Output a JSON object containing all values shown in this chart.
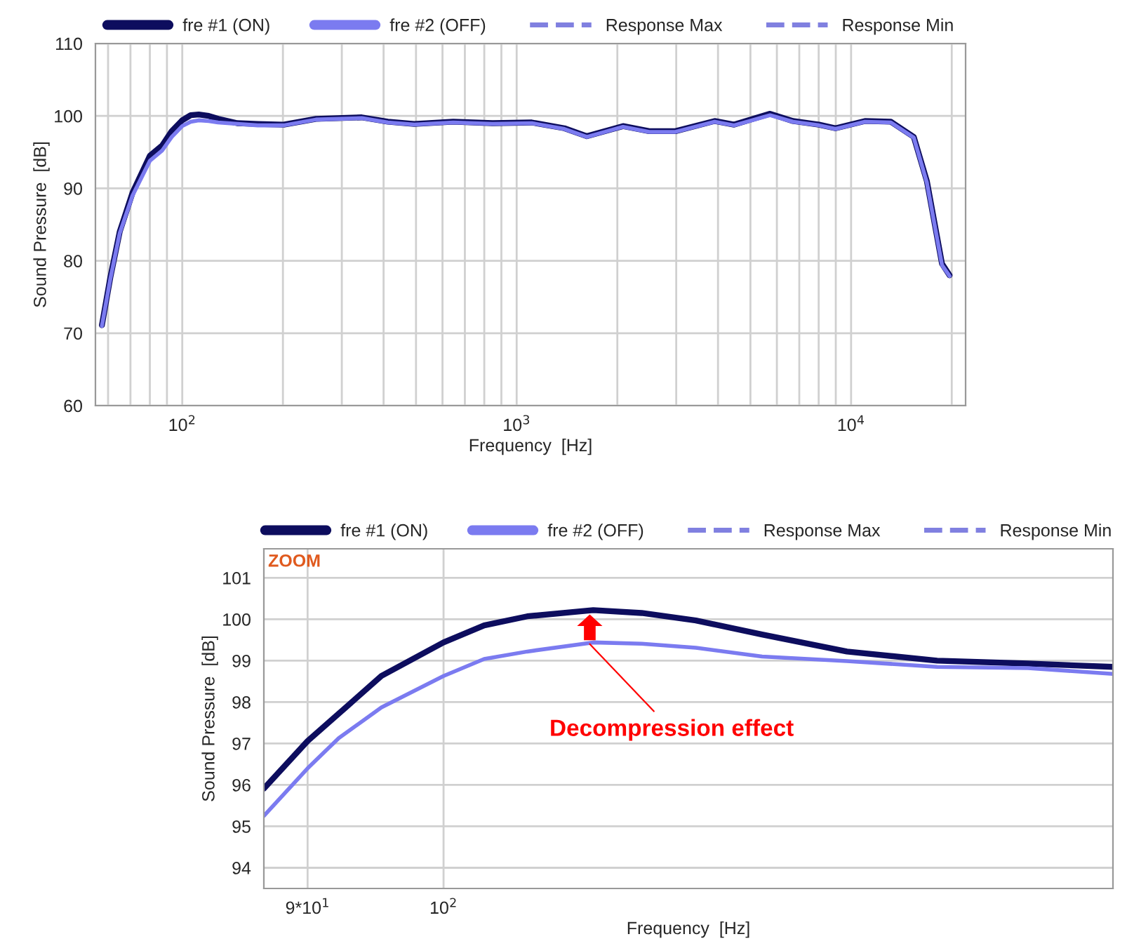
{
  "chart_data": [
    {
      "type": "line",
      "xlabel": "Frequency  [Hz]",
      "ylabel": "Sound Pressure  [dB]",
      "log": "x",
      "grid": true,
      "legend": "top",
      "line_style": "solid",
      "xlim": [
        55,
        22000
      ],
      "ylim": [
        60,
        110
      ],
      "xticks": [
        {
          "value": 60,
          "label": null
        },
        {
          "value": 70,
          "label": null
        },
        {
          "value": 80,
          "label": null
        },
        {
          "value": 90,
          "label": null
        },
        {
          "value": 100,
          "label": "10$^{2}$"
        },
        {
          "value": 200,
          "label": null
        },
        {
          "value": 300,
          "label": null
        },
        {
          "value": 400,
          "label": null
        },
        {
          "value": 500,
          "label": null
        },
        {
          "value": 600,
          "label": null
        },
        {
          "value": 700,
          "label": null
        },
        {
          "value": 800,
          "label": null
        },
        {
          "value": 900,
          "label": null
        },
        {
          "value": 1000,
          "label": "10$^{3}$"
        },
        {
          "value": 2000,
          "label": null
        },
        {
          "value": 3000,
          "label": null
        },
        {
          "value": 4000,
          "label": null
        },
        {
          "value": 5000,
          "label": null
        },
        {
          "value": 6000,
          "label": null
        },
        {
          "value": 7000,
          "label": null
        },
        {
          "value": 8000,
          "label": null
        },
        {
          "value": 9000,
          "label": null
        },
        {
          "value": 10000,
          "label": "10$^{4}$"
        },
        {
          "value": 20000,
          "label": null
        }
      ],
      "yticks": [
        60,
        70,
        80,
        90,
        100,
        110
      ],
      "series": [
        {
          "name": "fre #1 (ON)",
          "color": "#0d0d5e",
          "x": [
            57.5,
            61,
            65,
            71,
            80,
            87,
            93,
            100,
            106,
            112,
            120,
            128,
            146,
            168,
            201,
            251,
            344,
            412,
            494,
            646,
            847,
            1109,
            1389,
            1622,
            2080,
            2490,
            2985,
            3908,
            4470,
            5725,
            6700,
            8020,
            8980,
            11000,
            13150,
            15400,
            16850,
            18700,
            19700
          ],
          "values": [
            71.1,
            77.8,
            84,
            89.4,
            94.5,
            95.9,
            97.9,
            99.4,
            100.1,
            100.2,
            100.0,
            99.6,
            99.0,
            98.9,
            98.8,
            99.6,
            99.8,
            99.2,
            98.9,
            99.2,
            99.0,
            99.1,
            98.3,
            97.2,
            98.6,
            97.9,
            97.9,
            99.3,
            98.8,
            100.3,
            99.3,
            98.8,
            98.3,
            99.3,
            99.2,
            97.1,
            91.0,
            79.6,
            78.0
          ]
        },
        {
          "name": "fre #2 (OFF)",
          "color": "#7b7bf0",
          "x": [
            57.5,
            61,
            65,
            71,
            80,
            87,
            93,
            100,
            106,
            112,
            120,
            128,
            146,
            168,
            201,
            251,
            344,
            412,
            494,
            646,
            847,
            1109,
            1389,
            1622,
            2080,
            2490,
            2985,
            3908,
            4470,
            5725,
            6700,
            8020,
            8980,
            11000,
            13150,
            15400,
            16850,
            18700,
            19700
          ],
          "values": [
            71.0,
            77.6,
            83.8,
            89.0,
            93.8,
            95.2,
            97.1,
            98.6,
            99.2,
            99.4,
            99.3,
            99.1,
            98.9,
            98.7,
            98.7,
            99.5,
            99.7,
            99.1,
            98.8,
            99.1,
            98.9,
            99.0,
            98.2,
            97.1,
            98.5,
            97.8,
            97.8,
            99.2,
            98.7,
            100.1,
            99.2,
            98.7,
            98.2,
            99.2,
            99.1,
            97.0,
            90.8,
            79.4,
            77.9
          ]
        },
        {
          "name": "Response Max",
          "color": "#8080e0",
          "line_style": "dashed"
        },
        {
          "name": "Response Min",
          "color": "#8080e0",
          "line_style": "dashed"
        }
      ]
    },
    {
      "type": "line",
      "xlabel": "Frequency  [Hz]",
      "ylabel": "Sound Pressure  [dB]",
      "log": "x",
      "grid": true,
      "legend": "top",
      "line_style": "solid",
      "xlim": [
        87,
        168
      ],
      "ylim": [
        93.5,
        101.7
      ],
      "xticks": [
        {
          "value": 90,
          "label": "9*10$^{1}$"
        },
        {
          "value": 100,
          "label": "10$^{2}$"
        }
      ],
      "yticks": [
        94,
        95,
        96,
        97,
        98,
        99,
        100,
        101
      ],
      "annotations": [
        "ZOOM",
        {
          "text": "Decompression effect",
          "x": 112,
          "y": 99.4
        }
      ],
      "series": [
        {
          "name": "fre #1 (ON)",
          "color": "#0d0d5e",
          "x": [
            87,
            90,
            92.7,
            95.3,
            100,
            103.2,
            106.7,
            112.3,
            116.6,
            121.6,
            128,
            136.7,
            146.6,
            157.3,
            168
          ],
          "values": [
            95.91,
            97.06,
            97.87,
            98.63,
            99.44,
            99.85,
            100.07,
            100.22,
            100.15,
            99.97,
            99.63,
            99.22,
            99.0,
            98.93,
            98.85
          ]
        },
        {
          "name": "fre #2 (OFF)",
          "color": "#7b7bf0",
          "x": [
            87,
            90,
            92.2,
            95.3,
            100,
            103.2,
            106.7,
            112.3,
            116.6,
            121.6,
            128,
            136.7,
            146.6,
            157.3,
            168
          ],
          "values": [
            95.25,
            96.4,
            97.13,
            97.87,
            98.63,
            99.04,
            99.22,
            99.44,
            99.41,
            99.31,
            99.1,
            98.99,
            98.85,
            98.82,
            98.68
          ]
        },
        {
          "name": "Response Max",
          "color": "#8080e0",
          "line_style": "dashed"
        },
        {
          "name": "Response Min",
          "color": "#8080e0",
          "line_style": "dashed"
        }
      ]
    }
  ]
}
